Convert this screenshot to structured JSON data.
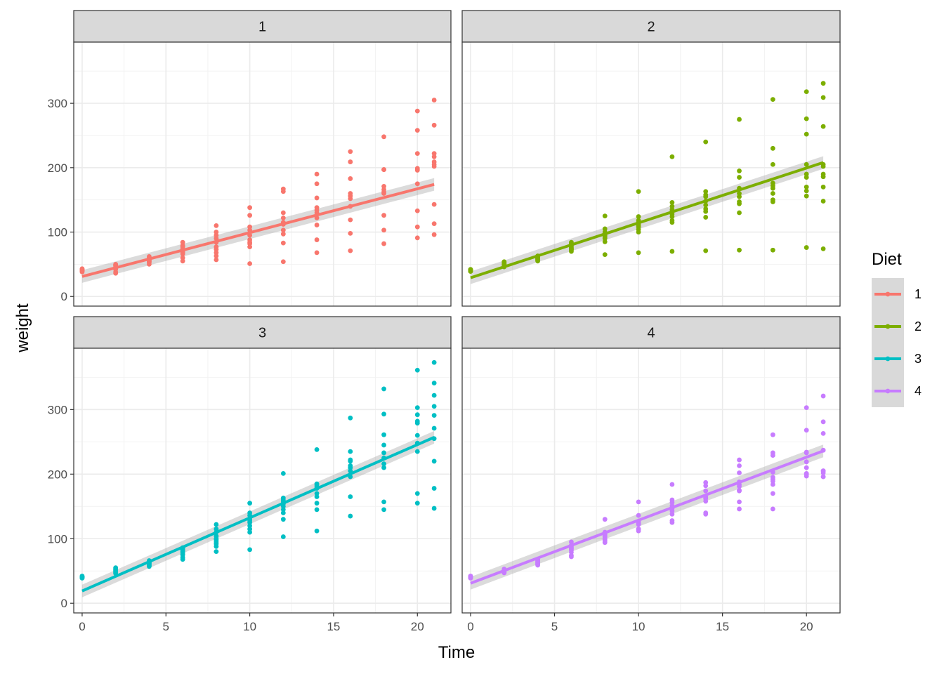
{
  "chart_data": {
    "type": "scatter",
    "xlabel": "Time",
    "ylabel": "weight",
    "x_ticks": [
      0,
      5,
      10,
      15,
      20
    ],
    "y_ticks": [
      0,
      100,
      200,
      300
    ],
    "xlim": [
      -0.5,
      22
    ],
    "ylim": [
      -15,
      395
    ],
    "grid": true,
    "legend": {
      "title": "Diet",
      "position": "right"
    },
    "smoother": "linear regression with confidence band",
    "times": [
      0,
      2,
      4,
      6,
      8,
      10,
      12,
      14,
      16,
      18,
      20,
      21
    ],
    "facets": [
      {
        "label": "1",
        "color": "#F8766D",
        "fit": {
          "x0": 0,
          "y0": 31,
          "x1": 21,
          "y1": 174
        },
        "points": [
          [
            40,
            41,
            42,
            43,
            39,
            38,
            41,
            40,
            42,
            41
          ],
          [
            49,
            47,
            45,
            50,
            42,
            38,
            44,
            36,
            48,
            49
          ],
          [
            59,
            58,
            56,
            62,
            55,
            50,
            53,
            54,
            60,
            57
          ],
          [
            72,
            74,
            66,
            79,
            68,
            60,
            55,
            70,
            84,
            77
          ],
          [
            84,
            90,
            77,
            95,
            73,
            68,
            63,
            57,
            100,
            110
          ],
          [
            103,
            95,
            84,
            108,
            88,
            82,
            77,
            51,
            126,
            138
          ],
          [
            122,
            115,
            112,
            130,
            103,
            97,
            83,
            54,
            163,
            167
          ],
          [
            138,
            134,
            130,
            153,
            122,
            111,
            88,
            68,
            175,
            190
          ],
          [
            160,
            156,
            152,
            183,
            140,
            119,
            98,
            71,
            209,
            225
          ],
          [
            171,
            166,
            162,
            197,
            160,
            126,
            103,
            82,
            248,
            197
          ],
          [
            199,
            197,
            196,
            222,
            175,
            133,
            108,
            91,
            288,
            258
          ],
          [
            205,
            217,
            209,
            305,
            202,
            143,
            113,
            96,
            266,
            222
          ]
        ]
      },
      {
        "label": "2",
        "color": "#7CAE00",
        "fit": {
          "x0": 0,
          "y0": 29,
          "x1": 21,
          "y1": 208
        },
        "points": [
          [
            40,
            41,
            39,
            42,
            41,
            40,
            42,
            39,
            41,
            40
          ],
          [
            49,
            51,
            50,
            53,
            47,
            48,
            52,
            46,
            50,
            54
          ],
          [
            58,
            60,
            59,
            62,
            56,
            57,
            63,
            55,
            61,
            59
          ],
          [
            73,
            76,
            74,
            80,
            70,
            72,
            82,
            78,
            75,
            84
          ],
          [
            90,
            95,
            92,
            100,
            85,
            65,
            125,
            105,
            98,
            94
          ],
          [
            104,
            112,
            108,
            118,
            100,
            68,
            163,
            124,
            115,
            110
          ],
          [
            118,
            128,
            124,
            140,
            115,
            70,
            217,
            146,
            135,
            132
          ],
          [
            132,
            142,
            136,
            163,
            123,
            71,
            240,
            158,
            148,
            155
          ],
          [
            147,
            160,
            155,
            195,
            144,
            72,
            275,
            185,
            168,
            130
          ],
          [
            160,
            176,
            172,
            230,
            150,
            72,
            306,
            205,
            168,
            147
          ],
          [
            170,
            190,
            185,
            276,
            164,
            76,
            318,
            252,
            205,
            156
          ],
          [
            186,
            205,
            202,
            331,
            170,
            74,
            309,
            264,
            190,
            148
          ]
        ]
      },
      {
        "label": "3",
        "color": "#00BFC4",
        "fit": {
          "x0": 0,
          "y0": 19,
          "x1": 21,
          "y1": 257
        },
        "points": [
          [
            40,
            41,
            39,
            42,
            41,
            40,
            42,
            39,
            41,
            40
          ],
          [
            50,
            53,
            48,
            55,
            47,
            51,
            52,
            46,
            54,
            49
          ],
          [
            62,
            64,
            57,
            66,
            59,
            61,
            63,
            58,
            65,
            60
          ],
          [
            80,
            85,
            76,
            86,
            71,
            75,
            82,
            68,
            79,
            84
          ],
          [
            104,
            110,
            95,
            115,
            88,
            92,
            98,
            80,
            100,
            122
          ],
          [
            125,
            136,
            120,
            155,
            110,
            115,
            130,
            83,
            140,
            128
          ],
          [
            154,
            163,
            140,
            201,
            130,
            145,
            150,
            103,
            160,
            157
          ],
          [
            170,
            185,
            155,
            238,
            145,
            165,
            180,
            112,
            183,
            178
          ],
          [
            222,
            235,
            205,
            287,
            165,
            196,
            210,
            135,
            213,
            220
          ],
          [
            261,
            245,
            225,
            332,
            145,
            210,
            233,
            157,
            293,
            216
          ],
          [
            303,
            282,
            260,
            361,
            155,
            235,
            248,
            170,
            292,
            279
          ],
          [
            322,
            341,
            271,
            373,
            147,
            220,
            255,
            178,
            305,
            291
          ]
        ]
      },
      {
        "label": "4",
        "color": "#C77CFF",
        "fit": {
          "x0": 0,
          "y0": 31,
          "x1": 21,
          "y1": 236
        },
        "points": [
          [
            42,
            41,
            40,
            42,
            39,
            41,
            40,
            42,
            39,
            41
          ],
          [
            51,
            49,
            52,
            53,
            48,
            50,
            51,
            47,
            52,
            50
          ],
          [
            61,
            60,
            66,
            68,
            59,
            62,
            64,
            63,
            65,
            67
          ],
          [
            72,
            74,
            88,
            90,
            79,
            82,
            84,
            86,
            95,
            85
          ],
          [
            98,
            94,
            104,
            110,
            101,
            106,
            103,
            96,
            130,
            108
          ],
          [
            115,
            112,
            123,
            136,
            122,
            127,
            126,
            115,
            157,
            124
          ],
          [
            138,
            128,
            143,
            160,
            147,
            151,
            147,
            125,
            184,
            156
          ],
          [
            164,
            140,
            165,
            182,
            158,
            163,
            162,
            138,
            187,
            174
          ],
          [
            188,
            157,
            184,
            213,
            175,
            174,
            181,
            146,
            222,
            202
          ],
          [
            203,
            184,
            192,
            233,
            170,
            189,
            195,
            146,
            261,
            229
          ],
          [
            233,
            201,
            210,
            268,
            200,
            200,
            219,
            197,
            303,
            234
          ],
          [
            237,
            205,
            237,
            321,
            202,
            205,
            263,
            196,
            281,
            196
          ]
        ]
      }
    ]
  }
}
